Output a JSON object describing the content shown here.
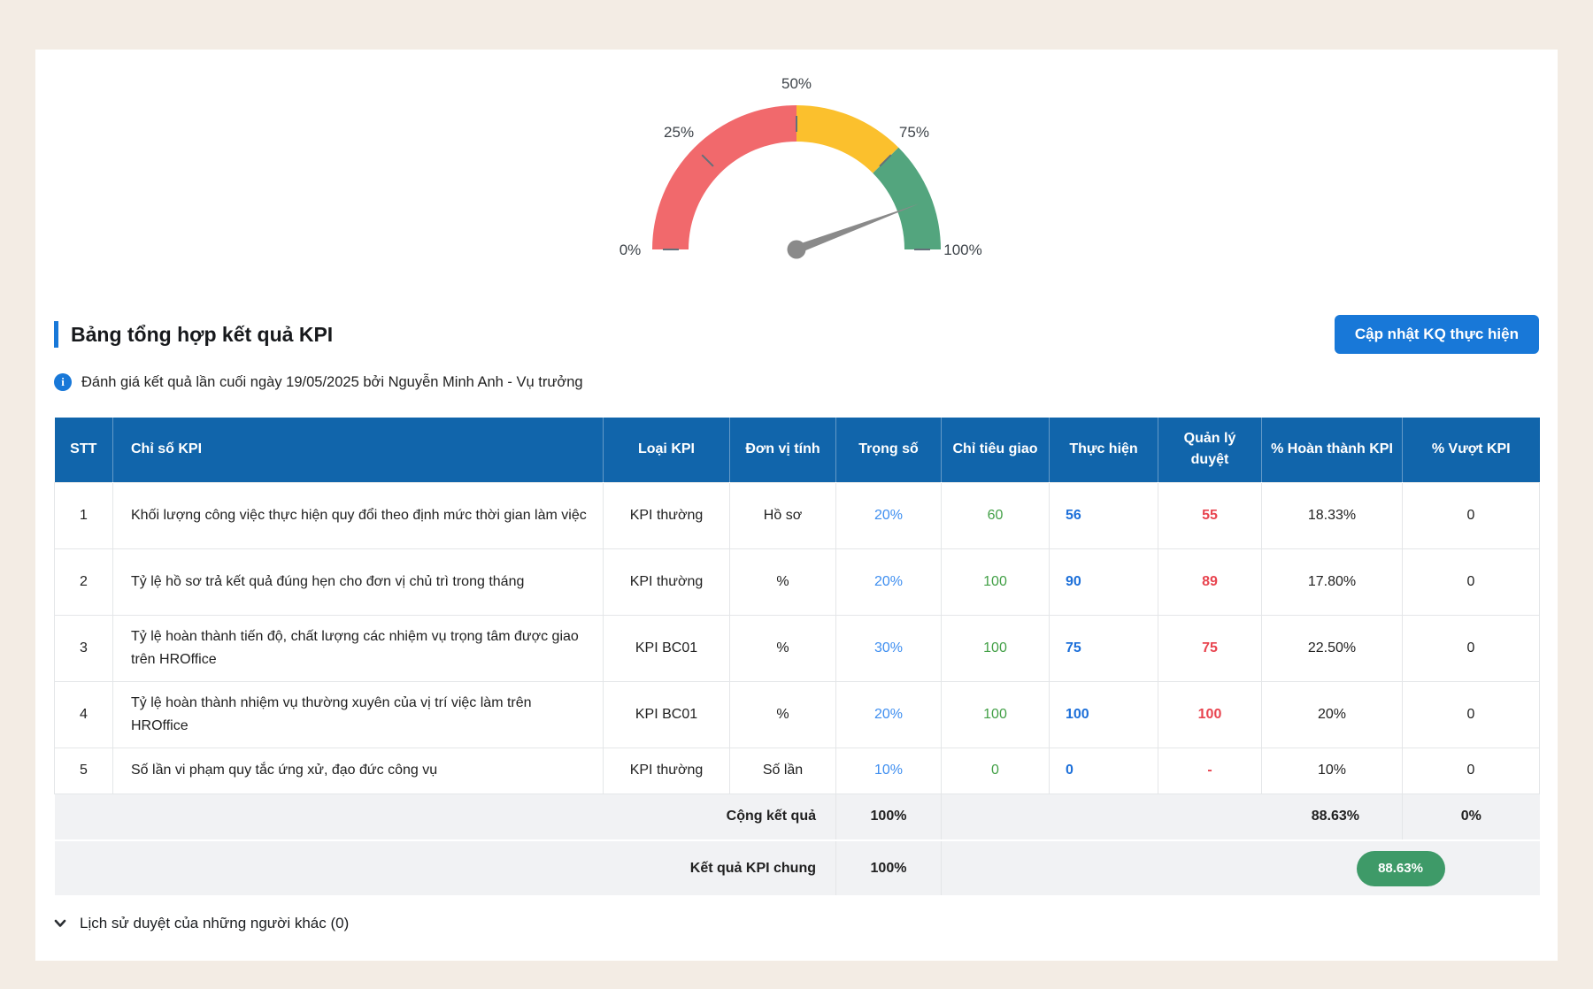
{
  "colors": {
    "page_bg": "#F3ECE4",
    "accent_blue": "#1878D8",
    "header_bg": "#1165AB",
    "weight_text": "#3E8EF0",
    "target_text": "#43A047",
    "actual_text": "#1C6FD9",
    "approved_text": "#E8444F",
    "badge_bg": "#3E9A68"
  },
  "chart_data": {
    "type": "gauge",
    "title": "",
    "min": 0,
    "max": 100,
    "value": 88.63,
    "unit": "%",
    "segments": [
      {
        "from": 0,
        "to": 50,
        "color": "#F1696C",
        "name": "red-zone"
      },
      {
        "from": 50,
        "to": 75,
        "color": "#FBC02D",
        "name": "yellow-zone"
      },
      {
        "from": 75,
        "to": 100,
        "color": "#53A57E",
        "name": "green-zone"
      }
    ],
    "tick_percents": [
      0,
      25,
      50,
      75,
      100
    ],
    "tick_labels": [
      "0%",
      "25%",
      "50%",
      "75%",
      "100%"
    ],
    "needle_color": "#8A8A8A",
    "tick_color": "#64707A"
  },
  "section": {
    "title": "Bảng tổng hợp kết quả KPI",
    "update_button": "Cập nhật KQ thực hiện",
    "info_icon": "info-circle",
    "info_text": "Đánh giá kết quả lần cuối ngày 19/05/2025 bởi Nguyễn Minh Anh - Vụ trưởng"
  },
  "table": {
    "headers": [
      "STT",
      "Chỉ số KPI",
      "Loại KPI",
      "Đơn vị tính",
      "Trọng số",
      "Chỉ tiêu giao",
      "Thực hiện",
      "Quản lý duyệt",
      "% Hoàn thành KPI",
      "% Vượt KPI"
    ],
    "rows": [
      {
        "stt": "1",
        "name": "Khối lượng công việc thực hiện quy đổi theo định mức thời gian làm việc",
        "type": "KPI thường",
        "unit": "Hồ sơ",
        "weight": "20%",
        "target": "60",
        "actual": "56",
        "approved": "55",
        "completion": "18.33%",
        "exceed": "0"
      },
      {
        "stt": "2",
        "name": "Tỷ lệ hồ sơ trả kết quả đúng hẹn cho đơn vị chủ trì trong tháng",
        "type": "KPI thường",
        "unit": "%",
        "weight": "20%",
        "target": "100",
        "actual": "90",
        "approved": "89",
        "completion": "17.80%",
        "exceed": "0"
      },
      {
        "stt": "3",
        "name": "Tỷ lệ hoàn thành tiến độ, chất lượng các nhiệm vụ trọng tâm được giao trên HROffice",
        "type": "KPI BC01",
        "unit": "%",
        "weight": "30%",
        "target": "100",
        "actual": "75",
        "approved": "75",
        "completion": "22.50%",
        "exceed": "0"
      },
      {
        "stt": "4",
        "name": "Tỷ lệ hoàn thành nhiệm vụ thường xuyên của vị trí việc làm trên HROffice",
        "type": "KPI BC01",
        "unit": "%",
        "weight": "20%",
        "target": "100",
        "actual": "100",
        "approved": "100",
        "completion": "20%",
        "exceed": "0"
      },
      {
        "stt": "5",
        "name": "Số lần vi phạm quy tắc ứng xử, đạo đức công vụ",
        "type": "KPI thường",
        "unit": "Số lần",
        "weight": "10%",
        "target": "0",
        "actual": "0",
        "approved": "-",
        "completion": "10%",
        "exceed": "0"
      }
    ],
    "summary": {
      "label": "Cộng kết quả",
      "weight_total": "100%",
      "completion_total": "88.63%",
      "exceed_total": "0%"
    },
    "overall": {
      "label": "Kết quả KPI chung",
      "weight_total": "100%",
      "badge": "88.63%"
    }
  },
  "history": {
    "label": "Lịch sử duyệt của những người khác (0)"
  }
}
